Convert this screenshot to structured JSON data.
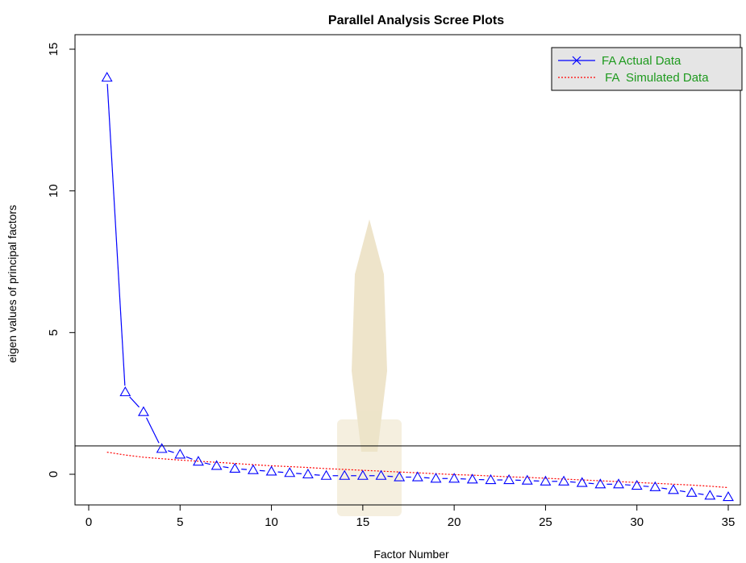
{
  "chart_data": {
    "type": "line",
    "title": "Parallel Analysis Scree Plots",
    "xlabel": "Factor Number",
    "ylabel": "eigen values of principal factors",
    "xlim": [
      0,
      35
    ],
    "ylim": [
      -1,
      15
    ],
    "x_ticks": [
      0,
      5,
      10,
      15,
      20,
      25,
      30,
      35
    ],
    "y_ticks": [
      0,
      5,
      10,
      15
    ],
    "reference_line": {
      "y": 1,
      "color": "#000000"
    },
    "legend": {
      "placement": "top-right",
      "entries": [
        {
          "label": "FA  Actual Data",
          "color": "#0000ff",
          "style": "solid-with-x"
        },
        {
          "label": " FA  Simulated Data",
          "color": "#ff0000",
          "style": "dotted"
        }
      ]
    },
    "series": [
      {
        "name": "FA  Actual Data",
        "color": "#0000ff",
        "marker": "triangle",
        "x": [
          1,
          2,
          3,
          4,
          5,
          6,
          7,
          8,
          9,
          10,
          11,
          12,
          13,
          14,
          15,
          16,
          17,
          18,
          19,
          20,
          21,
          22,
          23,
          24,
          25,
          26,
          27,
          28,
          29,
          30,
          31,
          32,
          33,
          34,
          35
        ],
        "values": [
          14.0,
          2.9,
          2.2,
          0.9,
          0.7,
          0.45,
          0.3,
          0.2,
          0.15,
          0.1,
          0.05,
          0.0,
          -0.05,
          -0.05,
          -0.05,
          -0.05,
          -0.1,
          -0.1,
          -0.15,
          -0.15,
          -0.18,
          -0.2,
          -0.2,
          -0.22,
          -0.25,
          -0.25,
          -0.3,
          -0.35,
          -0.35,
          -0.4,
          -0.45,
          -0.55,
          -0.65,
          -0.75,
          -0.8
        ]
      },
      {
        "name": " FA  Simulated Data",
        "color": "#ff0000",
        "line_style": "dotted",
        "x": [
          1,
          2,
          3,
          4,
          5,
          6,
          7,
          8,
          9,
          10,
          11,
          12,
          13,
          14,
          15,
          16,
          17,
          18,
          19,
          20,
          21,
          22,
          23,
          24,
          25,
          26,
          27,
          28,
          29,
          30,
          31,
          32,
          33,
          34,
          35
        ],
        "values": [
          0.78,
          0.68,
          0.6,
          0.55,
          0.5,
          0.46,
          0.42,
          0.38,
          0.34,
          0.3,
          0.27,
          0.24,
          0.2,
          0.17,
          0.14,
          0.11,
          0.08,
          0.05,
          0.02,
          -0.01,
          -0.03,
          -0.06,
          -0.09,
          -0.11,
          -0.14,
          -0.17,
          -0.2,
          -0.23,
          -0.26,
          -0.29,
          -0.32,
          -0.35,
          -0.38,
          -0.42,
          -0.47
        ]
      }
    ]
  }
}
